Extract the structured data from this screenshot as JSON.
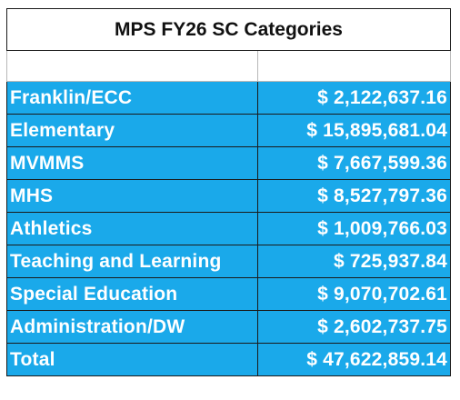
{
  "sheet": {
    "title": "MPS FY26 SC Categories",
    "rows": [
      {
        "label": "Franklin/ECC",
        "amount": "$ 2,122,637.16"
      },
      {
        "label": "Elementary",
        "amount": "$ 15,895,681.04"
      },
      {
        "label": "MVMMS",
        "amount": "$ 7,667,599.36"
      },
      {
        "label": "MHS",
        "amount": "$ 8,527,797.36"
      },
      {
        "label": "Athletics",
        "amount": "$ 1,009,766.03"
      },
      {
        "label": "Teaching and Learning",
        "amount": "$ 725,937.84"
      },
      {
        "label": "Special Education",
        "amount": "$ 9,070,702.61"
      },
      {
        "label": "Administration/DW",
        "amount": "$ 2,602,737.75"
      },
      {
        "label": "Total",
        "amount": "$ 47,622,859.14"
      }
    ]
  },
  "colors": {
    "row_fill": "#1aa9ea",
    "row_text": "#ffffff",
    "title_text": "#111111",
    "border": "#1a1a1a"
  }
}
